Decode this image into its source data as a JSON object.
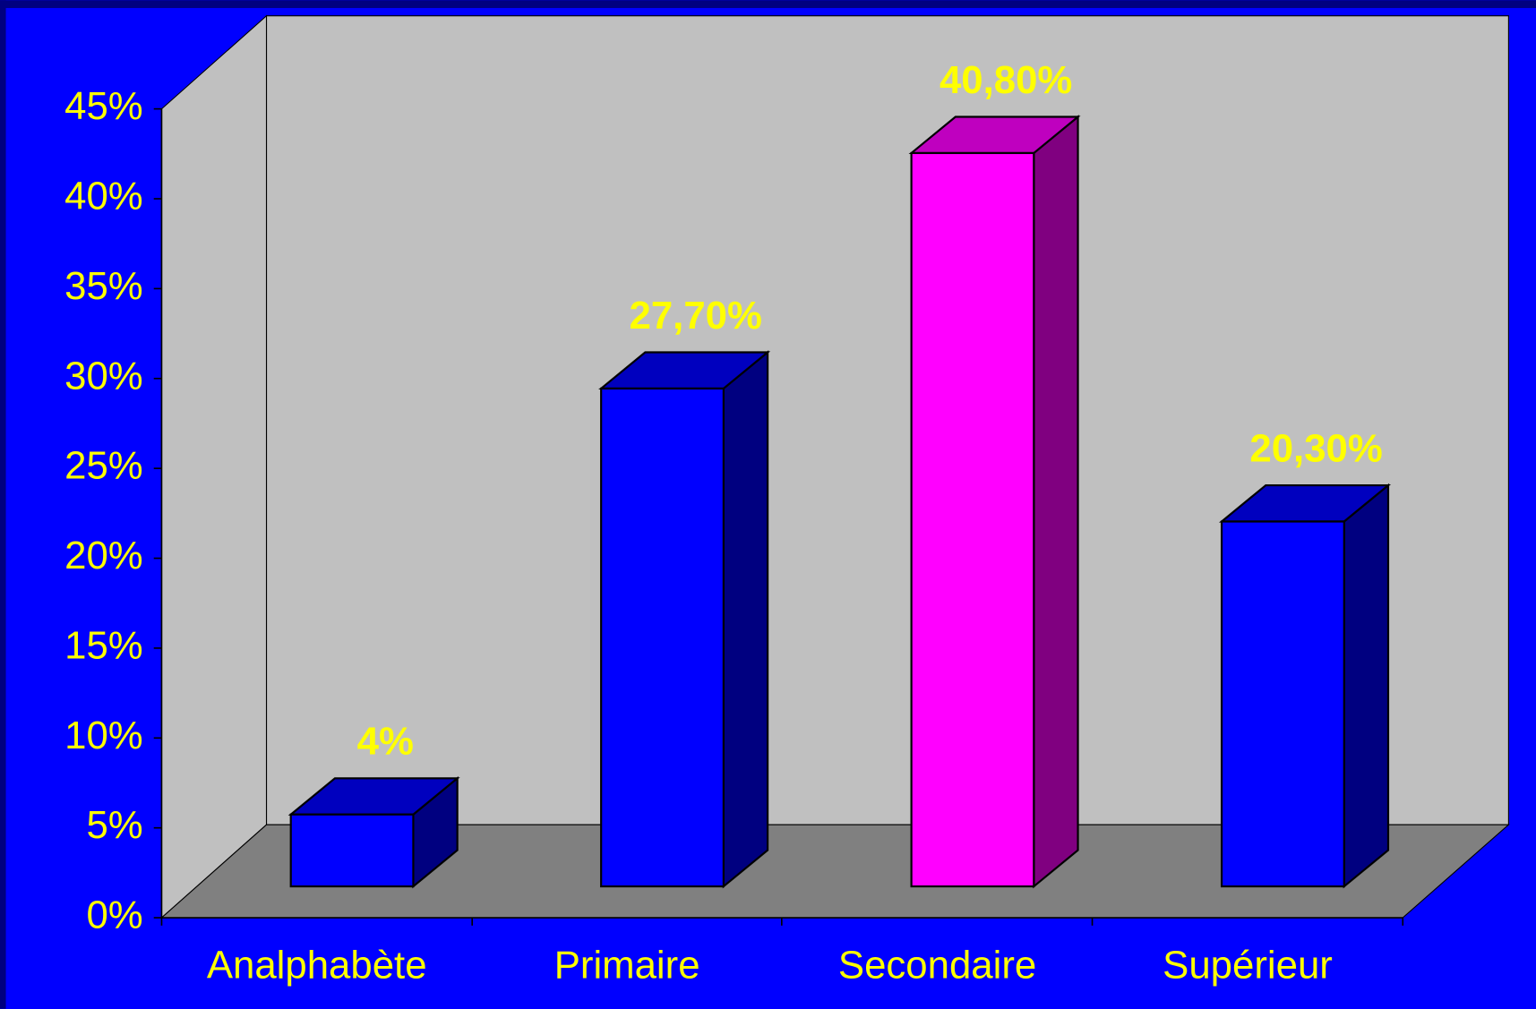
{
  "chart_data": {
    "type": "bar",
    "categories": [
      "Analphabète",
      "Primaire",
      "Secondaire",
      "Supérieur"
    ],
    "values": [
      4,
      27.7,
      40.8,
      20.3
    ],
    "value_labels": [
      "4%",
      "27,70%",
      "40,80%",
      "20,30%"
    ],
    "colors": [
      "#0000ff",
      "#0000ff",
      "#ff00ff",
      "#0000ff"
    ],
    "ylim": [
      0,
      45
    ],
    "yticks": [
      {
        "value": 0,
        "label": "0%"
      },
      {
        "value": 5,
        "label": "5%"
      },
      {
        "value": 10,
        "label": "10%"
      },
      {
        "value": 15,
        "label": "15%"
      },
      {
        "value": 20,
        "label": "20%"
      },
      {
        "value": 25,
        "label": "25%"
      },
      {
        "value": 30,
        "label": "30%"
      },
      {
        "value": 35,
        "label": "35%"
      },
      {
        "value": 40,
        "label": "40%"
      },
      {
        "value": 45,
        "label": "45%"
      }
    ],
    "grid": false
  }
}
